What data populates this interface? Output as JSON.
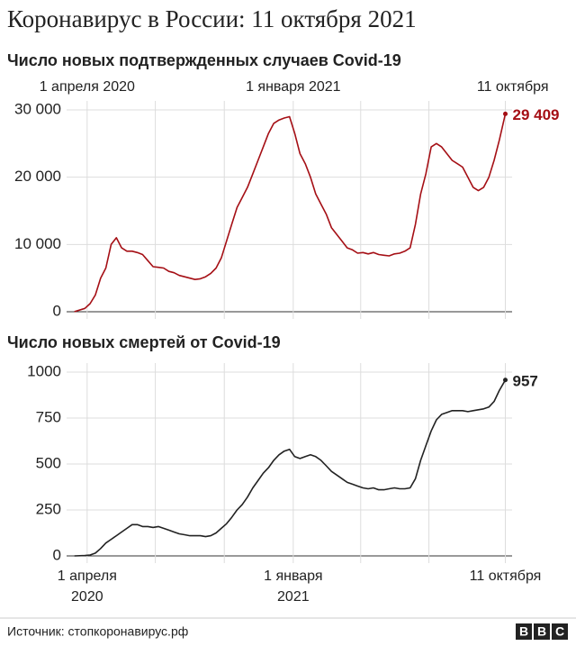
{
  "title": "Коронавирус в России: 11 октября 2021",
  "source": "Источник: стопкоронавирус.рф",
  "logo": [
    "B",
    "B",
    "C"
  ],
  "chart_data": [
    {
      "type": "line",
      "title": "Число новых подтвержденных случаев Covid-19",
      "color": "#a50f15",
      "xtick_position": "top",
      "x": [
        "2020-03-15",
        "2020-03-29",
        "2020-04-05",
        "2020-04-12",
        "2020-04-19",
        "2020-04-26",
        "2020-05-03",
        "2020-05-10",
        "2020-05-17",
        "2020-05-24",
        "2020-05-31",
        "2020-06-07",
        "2020-06-14",
        "2020-06-21",
        "2020-06-28",
        "2020-07-05",
        "2020-07-12",
        "2020-07-19",
        "2020-07-26",
        "2020-08-02",
        "2020-08-09",
        "2020-08-16",
        "2020-08-23",
        "2020-08-30",
        "2020-09-06",
        "2020-09-13",
        "2020-09-20",
        "2020-09-27",
        "2020-10-04",
        "2020-10-11",
        "2020-10-18",
        "2020-10-25",
        "2020-11-01",
        "2020-11-08",
        "2020-11-15",
        "2020-11-22",
        "2020-11-29",
        "2020-12-06",
        "2020-12-13",
        "2020-12-20",
        "2020-12-27",
        "2021-01-03",
        "2021-01-10",
        "2021-01-17",
        "2021-01-24",
        "2021-01-31",
        "2021-02-07",
        "2021-02-14",
        "2021-02-21",
        "2021-02-28",
        "2021-03-07",
        "2021-03-14",
        "2021-03-21",
        "2021-03-28",
        "2021-04-04",
        "2021-04-11",
        "2021-04-18",
        "2021-04-25",
        "2021-05-02",
        "2021-05-09",
        "2021-05-16",
        "2021-05-23",
        "2021-05-30",
        "2021-06-06",
        "2021-06-13",
        "2021-06-20",
        "2021-06-27",
        "2021-07-04",
        "2021-07-11",
        "2021-07-18",
        "2021-07-25",
        "2021-08-01",
        "2021-08-08",
        "2021-08-15",
        "2021-08-22",
        "2021-08-29",
        "2021-09-05",
        "2021-09-12",
        "2021-09-19",
        "2021-09-26",
        "2021-10-03",
        "2021-10-11"
      ],
      "values": [
        20,
        500,
        1200,
        2500,
        5000,
        6500,
        10000,
        11000,
        9500,
        9000,
        9000,
        8800,
        8500,
        7600,
        6700,
        6600,
        6500,
        6000,
        5800,
        5400,
        5200,
        5000,
        4800,
        4900,
        5200,
        5700,
        6500,
        8000,
        10500,
        13000,
        15500,
        17000,
        18500,
        20500,
        22500,
        24500,
        26500,
        28000,
        28500,
        28800,
        29000,
        26500,
        23500,
        22000,
        20000,
        17500,
        16000,
        14500,
        12500,
        11500,
        10500,
        9500,
        9200,
        8700,
        8800,
        8600,
        8800,
        8500,
        8400,
        8300,
        8600,
        8700,
        9000,
        9500,
        13000,
        17500,
        20500,
        24500,
        25000,
        24500,
        23500,
        22500,
        22000,
        21500,
        20000,
        18500,
        18000,
        18500,
        20000,
        22500,
        25500,
        29409
      ],
      "value_labels": [
        null,
        null,
        null,
        null,
        null,
        null,
        null,
        null,
        null,
        null,
        null,
        null,
        null,
        null,
        null,
        null,
        null,
        null,
        null,
        null,
        null,
        null,
        null,
        null,
        null,
        null,
        null,
        null,
        null,
        null,
        null,
        null,
        null,
        null,
        null,
        null,
        null,
        null,
        null,
        null,
        null,
        null,
        null,
        null,
        null,
        null,
        null,
        null,
        null,
        null,
        null,
        null,
        null,
        null,
        null,
        null,
        null,
        null,
        null,
        null,
        null,
        null,
        null,
        null,
        null,
        null,
        null,
        null,
        null,
        null,
        null,
        null,
        null,
        null,
        null,
        null,
        null,
        null,
        null,
        null,
        null,
        "29 409"
      ],
      "xlim": [
        "2020-03-01",
        "2021-10-20"
      ],
      "xticks": [
        {
          "value": "2020-04-01",
          "label": "1 апреля 2020"
        },
        {
          "value": "2020-07-01",
          "label": null
        },
        {
          "value": "2020-10-01",
          "label": null
        },
        {
          "value": "2021-01-01",
          "label": "1 января 2021"
        },
        {
          "value": "2021-04-01",
          "label": null
        },
        {
          "value": "2021-07-01",
          "label": null
        },
        {
          "value": "2021-10-11",
          "label": "11 октября"
        }
      ],
      "ylim": [
        0,
        30000
      ],
      "yticks": [
        0,
        {
          "value": 10000,
          "label": "10 000"
        },
        {
          "value": 20000,
          "label": "20 000"
        },
        {
          "value": 30000,
          "label": "30 000"
        }
      ],
      "grid": true
    },
    {
      "type": "line",
      "title": "Число новых смертей от Covid-19",
      "color": "#222222",
      "xtick_position": "bottom",
      "x": [
        "2020-03-15",
        "2020-03-29",
        "2020-04-05",
        "2020-04-12",
        "2020-04-19",
        "2020-04-26",
        "2020-05-03",
        "2020-05-10",
        "2020-05-17",
        "2020-05-24",
        "2020-05-31",
        "2020-06-07",
        "2020-06-14",
        "2020-06-21",
        "2020-06-28",
        "2020-07-05",
        "2020-07-12",
        "2020-07-19",
        "2020-07-26",
        "2020-08-02",
        "2020-08-09",
        "2020-08-16",
        "2020-08-23",
        "2020-08-30",
        "2020-09-06",
        "2020-09-13",
        "2020-09-20",
        "2020-09-27",
        "2020-10-04",
        "2020-10-11",
        "2020-10-18",
        "2020-10-25",
        "2020-11-01",
        "2020-11-08",
        "2020-11-15",
        "2020-11-22",
        "2020-11-29",
        "2020-12-06",
        "2020-12-13",
        "2020-12-20",
        "2020-12-27",
        "2021-01-03",
        "2021-01-10",
        "2021-01-17",
        "2021-01-24",
        "2021-01-31",
        "2021-02-07",
        "2021-02-14",
        "2021-02-21",
        "2021-02-28",
        "2021-03-07",
        "2021-03-14",
        "2021-03-21",
        "2021-03-28",
        "2021-04-04",
        "2021-04-11",
        "2021-04-18",
        "2021-04-25",
        "2021-05-02",
        "2021-05-09",
        "2021-05-16",
        "2021-05-23",
        "2021-05-30",
        "2021-06-06",
        "2021-06-13",
        "2021-06-20",
        "2021-06-27",
        "2021-07-04",
        "2021-07-11",
        "2021-07-18",
        "2021-07-25",
        "2021-08-01",
        "2021-08-08",
        "2021-08-15",
        "2021-08-22",
        "2021-08-29",
        "2021-09-05",
        "2021-09-12",
        "2021-09-19",
        "2021-09-26",
        "2021-10-03",
        "2021-10-11"
      ],
      "values": [
        0,
        2,
        5,
        15,
        40,
        70,
        90,
        110,
        130,
        150,
        170,
        170,
        160,
        160,
        155,
        160,
        150,
        140,
        130,
        120,
        115,
        110,
        110,
        110,
        105,
        110,
        125,
        150,
        175,
        210,
        250,
        280,
        320,
        370,
        410,
        450,
        480,
        520,
        550,
        570,
        580,
        540,
        530,
        540,
        550,
        540,
        520,
        490,
        460,
        440,
        420,
        400,
        390,
        380,
        370,
        365,
        370,
        360,
        360,
        365,
        370,
        365,
        365,
        370,
        420,
        520,
        600,
        680,
        740,
        770,
        780,
        790,
        790,
        790,
        785,
        790,
        795,
        800,
        810,
        840,
        900,
        957
      ],
      "xlim": [
        "2020-03-01",
        "2021-10-20"
      ],
      "xticks": [
        {
          "value": "2020-04-01",
          "label": "1 апреля 2020"
        },
        {
          "value": "2020-07-01",
          "label": null
        },
        {
          "value": "2020-10-01",
          "label": null
        },
        {
          "value": "2021-01-01",
          "label": "1 января 2021"
        },
        {
          "value": "2021-04-01",
          "label": null
        },
        {
          "value": "2021-07-01",
          "label": null
        },
        {
          "value": "2021-10-11",
          "label": "11 октября"
        }
      ],
      "ylim": [
        0,
        1000
      ],
      "yticks": [
        0,
        250,
        500,
        750,
        1000
      ],
      "grid": true
    }
  ]
}
